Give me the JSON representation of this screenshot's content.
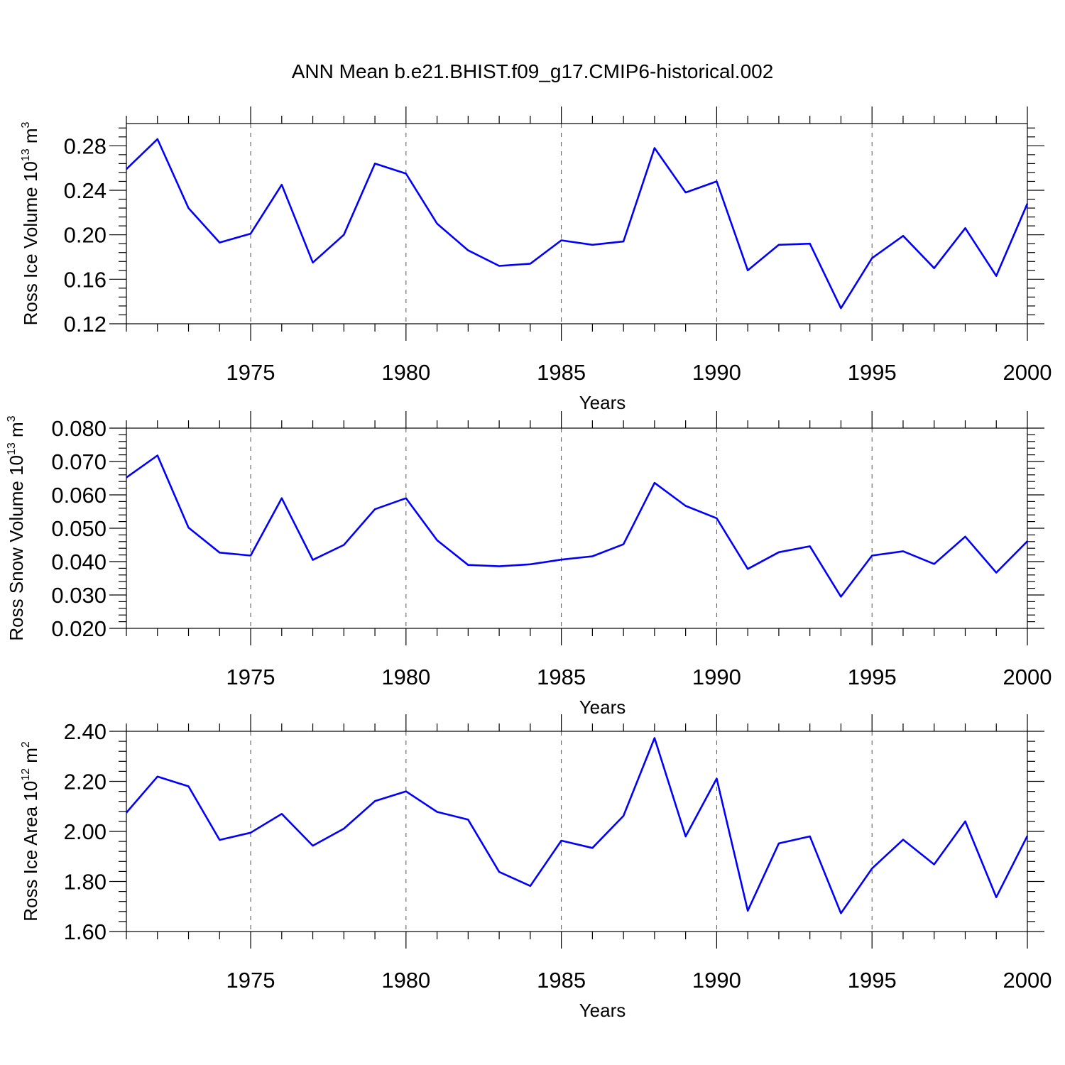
{
  "figure_title": "ANN Mean b.e21.BHIST.f09_g17.CMIP6-historical.002",
  "colors": {
    "series": "#0000ff",
    "axis": "#000000",
    "grid": "#555555"
  },
  "chart_data": [
    {
      "type": "line",
      "ylabel": {
        "text": "Ross Ice Volume 10",
        "exponent": "13",
        "unit": "m",
        "unit_exponent": "3"
      },
      "xlabel": "Years",
      "xlim": [
        1971,
        2000
      ],
      "ylim": [
        0.12,
        0.3
      ],
      "yticks": [
        0.12,
        0.16,
        0.2,
        0.24,
        0.28
      ],
      "ytick_labels": [
        "0.12",
        "0.16",
        "0.20",
        "0.24",
        "0.28"
      ],
      "xticks": [
        1975,
        1980,
        1985,
        1990,
        1995,
        2000
      ],
      "xtick_labels": [
        "1975",
        "1980",
        "1985",
        "1990",
        "1995",
        "2000"
      ],
      "x": [
        1971,
        1972,
        1973,
        1974,
        1975,
        1976,
        1977,
        1978,
        1979,
        1980,
        1981,
        1982,
        1983,
        1984,
        1985,
        1986,
        1987,
        1988,
        1989,
        1990,
        1991,
        1992,
        1993,
        1994,
        1995,
        1996,
        1997,
        1998,
        1999,
        2000
      ],
      "values": [
        0.259,
        0.286,
        0.224,
        0.193,
        0.201,
        0.245,
        0.175,
        0.2,
        0.264,
        0.255,
        0.21,
        0.186,
        0.172,
        0.174,
        0.195,
        0.191,
        0.194,
        0.278,
        0.238,
        0.248,
        0.168,
        0.191,
        0.192,
        0.134,
        0.179,
        0.199,
        0.17,
        0.206,
        0.163,
        0.228
      ]
    },
    {
      "type": "line",
      "ylabel": {
        "text": "Ross Snow Volume 10",
        "exponent": "13",
        "unit": "m",
        "unit_exponent": "3"
      },
      "xlabel": "Years",
      "xlim": [
        1971,
        2000
      ],
      "ylim": [
        0.02,
        0.08
      ],
      "yticks": [
        0.02,
        0.03,
        0.04,
        0.05,
        0.06,
        0.07,
        0.08
      ],
      "ytick_labels": [
        "0.020",
        "0.030",
        "0.040",
        "0.050",
        "0.060",
        "0.070",
        "0.080"
      ],
      "xticks": [
        1975,
        1980,
        1985,
        1990,
        1995,
        2000
      ],
      "xtick_labels": [
        "1975",
        "1980",
        "1985",
        "1990",
        "1995",
        "2000"
      ],
      "x": [
        1971,
        1972,
        1973,
        1974,
        1975,
        1976,
        1977,
        1978,
        1979,
        1980,
        1981,
        1982,
        1983,
        1984,
        1985,
        1986,
        1987,
        1988,
        1989,
        1990,
        1991,
        1992,
        1993,
        1994,
        1995,
        1996,
        1997,
        1998,
        1999,
        2000
      ],
      "values": [
        0.0652,
        0.0718,
        0.0502,
        0.0427,
        0.0418,
        0.059,
        0.0405,
        0.045,
        0.0557,
        0.059,
        0.0464,
        0.039,
        0.0386,
        0.0392,
        0.0406,
        0.0416,
        0.0452,
        0.0636,
        0.0567,
        0.053,
        0.0378,
        0.0428,
        0.0446,
        0.0295,
        0.0418,
        0.0431,
        0.0393,
        0.0475,
        0.0367,
        0.0461
      ]
    },
    {
      "type": "line",
      "ylabel": {
        "text": "Ross Ice Area 10",
        "exponent": "12",
        "unit": "m",
        "unit_exponent": "2"
      },
      "xlabel": "Years",
      "xlim": [
        1971,
        2000
      ],
      "ylim": [
        1.6,
        2.4
      ],
      "yticks": [
        1.6,
        1.8,
        2.0,
        2.2,
        2.4
      ],
      "ytick_labels": [
        "1.60",
        "1.80",
        "2.00",
        "2.20",
        "2.40"
      ],
      "xticks": [
        1975,
        1980,
        1985,
        1990,
        1995,
        2000
      ],
      "xtick_labels": [
        "1975",
        "1980",
        "1985",
        "1990",
        "1995",
        "2000"
      ],
      "x": [
        1971,
        1972,
        1973,
        1974,
        1975,
        1976,
        1977,
        1978,
        1979,
        1980,
        1981,
        1982,
        1983,
        1984,
        1985,
        1986,
        1987,
        1988,
        1989,
        1990,
        1991,
        1992,
        1993,
        1994,
        1995,
        1996,
        1997,
        1998,
        1999,
        2000
      ],
      "values": [
        2.075,
        2.219,
        2.18,
        1.966,
        1.995,
        2.07,
        1.943,
        2.011,
        2.121,
        2.16,
        2.078,
        2.047,
        1.838,
        1.782,
        1.963,
        1.934,
        2.062,
        2.373,
        1.98,
        2.211,
        1.683,
        1.952,
        1.98,
        1.673,
        1.852,
        1.967,
        1.868,
        2.04,
        1.737,
        1.982
      ]
    }
  ]
}
